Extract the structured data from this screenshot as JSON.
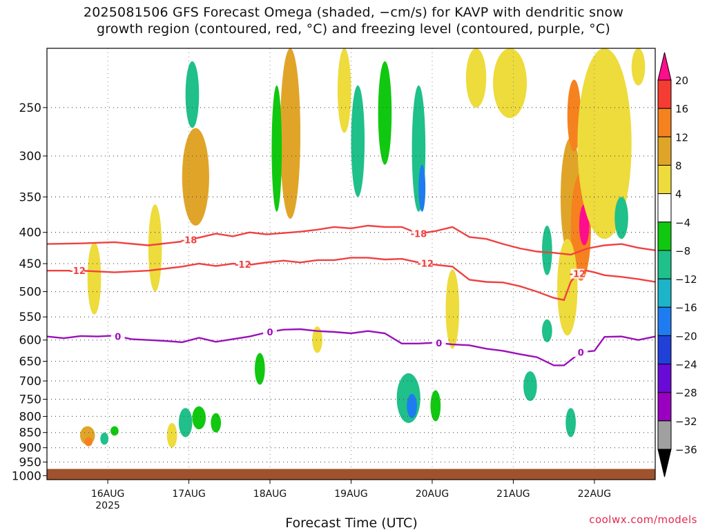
{
  "title": {
    "line1": "2025081506 GFS Forecast Omega (shaded, −cm/s) for KAVP with dendritic snow",
    "line2": "growth region (contoured, red, °C) and freezing level (contoured, purple, °C)"
  },
  "credit": "coolwx.com/models",
  "chart_data": {
    "type": "heatmap",
    "xlabel": "Forecast Time (UTC)",
    "ylabel": "",
    "x_ticks": [
      {
        "label": "16AUG",
        "sublabel": "2025",
        "hour": 18
      },
      {
        "label": "17AUG",
        "sublabel": "",
        "hour": 42
      },
      {
        "label": "18AUG",
        "sublabel": "",
        "hour": 66
      },
      {
        "label": "19AUG",
        "sublabel": "",
        "hour": 90
      },
      {
        "label": "20AUG",
        "sublabel": "",
        "hour": 114
      },
      {
        "label": "21AUG",
        "sublabel": "",
        "hour": 138
      },
      {
        "label": "22AUG",
        "sublabel": "",
        "hour": 162
      }
    ],
    "xlim_hours": [
      0,
      180
    ],
    "y_ticks": [
      250,
      300,
      350,
      400,
      450,
      500,
      550,
      600,
      650,
      700,
      750,
      800,
      850,
      900,
      950,
      1000
    ],
    "ylim_hpa": [
      200,
      1015
    ],
    "y_scale": "log-pressure",
    "ground_hpa": 975,
    "colorbar": {
      "labels": [
        "20",
        "16",
        "12",
        "8",
        "4",
        "−4",
        "−8",
        "−12",
        "−16",
        "−20",
        "−24",
        "−28",
        "−32",
        "−36"
      ],
      "colors": [
        "#ff0d8c",
        "#f53c32",
        "#f5821e",
        "#e0a528",
        "#eedb3c",
        "#ffffff",
        "#10c810",
        "#1fc08a",
        "#1bb4c8",
        "#1e7cf0",
        "#2040d8",
        "#6a0ad6",
        "#9a00c0",
        "#a0a0a0",
        "#000000"
      ]
    },
    "contours": [
      {
        "label": "-18",
        "color": "#f04040",
        "points": [
          [
            0,
            418
          ],
          [
            10,
            417
          ],
          [
            20,
            415
          ],
          [
            30,
            420
          ],
          [
            40,
            414
          ],
          [
            45,
            408
          ],
          [
            50,
            402
          ],
          [
            55,
            406
          ],
          [
            60,
            400
          ],
          [
            65,
            403
          ],
          [
            70,
            401
          ],
          [
            75,
            399
          ],
          [
            80,
            396
          ],
          [
            85,
            392
          ],
          [
            90,
            394
          ],
          [
            95,
            390
          ],
          [
            100,
            392
          ],
          [
            105,
            392
          ],
          [
            110,
            402
          ],
          [
            115,
            398
          ],
          [
            120,
            392
          ],
          [
            125,
            407
          ],
          [
            130,
            410
          ],
          [
            135,
            418
          ],
          [
            140,
            425
          ],
          [
            145,
            430
          ],
          [
            150,
            432
          ],
          [
            155,
            435
          ],
          [
            160,
            425
          ],
          [
            165,
            420
          ],
          [
            170,
            418
          ],
          [
            175,
            424
          ],
          [
            180,
            428
          ]
        ],
        "label_hours": [
          42,
          110
        ]
      },
      {
        "label": "-12",
        "color": "#f04040",
        "points": [
          [
            0,
            462
          ],
          [
            10,
            462
          ],
          [
            20,
            465
          ],
          [
            30,
            462
          ],
          [
            40,
            455
          ],
          [
            45,
            450
          ],
          [
            50,
            454
          ],
          [
            55,
            450
          ],
          [
            60,
            452
          ],
          [
            65,
            448
          ],
          [
            70,
            445
          ],
          [
            75,
            448
          ],
          [
            80,
            444
          ],
          [
            85,
            444
          ],
          [
            90,
            440
          ],
          [
            95,
            440
          ],
          [
            100,
            443
          ],
          [
            105,
            442
          ],
          [
            110,
            448
          ],
          [
            115,
            452
          ],
          [
            120,
            455
          ],
          [
            125,
            478
          ],
          [
            130,
            482
          ],
          [
            135,
            483
          ],
          [
            140,
            490
          ],
          [
            145,
            500
          ],
          [
            150,
            512
          ],
          [
            153,
            516
          ],
          [
            155,
            482
          ],
          [
            158,
            460
          ],
          [
            162,
            465
          ],
          [
            165,
            470
          ],
          [
            170,
            473
          ],
          [
            175,
            477
          ],
          [
            180,
            482
          ]
        ],
        "label_hours": [
          9,
          58,
          112,
          157
        ]
      },
      {
        "label": "0",
        "color": "#9a10b8",
        "points": [
          [
            0,
            592
          ],
          [
            5,
            596
          ],
          [
            10,
            591
          ],
          [
            15,
            592
          ],
          [
            20,
            590
          ],
          [
            25,
            598
          ],
          [
            30,
            600
          ],
          [
            35,
            602
          ],
          [
            40,
            605
          ],
          [
            45,
            595
          ],
          [
            50,
            604
          ],
          [
            55,
            598
          ],
          [
            60,
            592
          ],
          [
            65,
            583
          ],
          [
            70,
            577
          ],
          [
            75,
            576
          ],
          [
            80,
            580
          ],
          [
            85,
            582
          ],
          [
            90,
            585
          ],
          [
            95,
            580
          ],
          [
            100,
            585
          ],
          [
            105,
            608
          ],
          [
            110,
            608
          ],
          [
            115,
            606
          ],
          [
            120,
            610
          ],
          [
            125,
            612
          ],
          [
            130,
            620
          ],
          [
            135,
            625
          ],
          [
            140,
            633
          ],
          [
            145,
            640
          ],
          [
            150,
            660
          ],
          [
            153,
            660
          ],
          [
            158,
            628
          ],
          [
            162,
            625
          ],
          [
            165,
            593
          ],
          [
            170,
            592
          ],
          [
            175,
            600
          ],
          [
            180,
            592
          ]
        ],
        "label_hours": [
          21,
          66,
          116,
          158
        ]
      }
    ],
    "omega_blobs": [
      {
        "t": 12,
        "p": 860,
        "w": 2.2,
        "h": 60,
        "v": 10
      },
      {
        "t": 12.3,
        "p": 880,
        "w": 1.2,
        "h": 30,
        "v": 15
      },
      {
        "t": 20,
        "p": 845,
        "w": 1.2,
        "h": 30,
        "v": -7
      },
      {
        "t": 17,
        "p": 870,
        "w": 1.2,
        "h": 40,
        "v": -10
      },
      {
        "t": 41,
        "p": 820,
        "w": 2,
        "h": 90,
        "v": -8
      },
      {
        "t": 45,
        "p": 805,
        "w": 2,
        "h": 70,
        "v": -7
      },
      {
        "t": 50,
        "p": 820,
        "w": 1.5,
        "h": 60,
        "v": -6
      },
      {
        "t": 37,
        "p": 860,
        "w": 1.5,
        "h": 80,
        "v": 6
      },
      {
        "t": 44,
        "p": 330,
        "w": 4,
        "h": 120,
        "v": 8
      },
      {
        "t": 43,
        "p": 240,
        "w": 2,
        "h": 60,
        "v": -10
      },
      {
        "t": 32,
        "p": 430,
        "w": 2,
        "h": 140,
        "v": 5
      },
      {
        "t": 72,
        "p": 280,
        "w": 3,
        "h": 200,
        "v": 9
      },
      {
        "t": 68,
        "p": 300,
        "w": 1.5,
        "h": 140,
        "v": -7
      },
      {
        "t": 92,
        "p": 290,
        "w": 2,
        "h": 120,
        "v": -8
      },
      {
        "t": 100,
        "p": 260,
        "w": 2,
        "h": 100,
        "v": -6
      },
      {
        "t": 110,
        "p": 300,
        "w": 2,
        "h": 140,
        "v": -9
      },
      {
        "t": 111,
        "p": 340,
        "w": 1,
        "h": 60,
        "v": -16
      },
      {
        "t": 107,
        "p": 750,
        "w": 3.5,
        "h": 140,
        "v": -10
      },
      {
        "t": 108,
        "p": 770,
        "w": 1.5,
        "h": 70,
        "v": -16
      },
      {
        "t": 115,
        "p": 770,
        "w": 1.5,
        "h": 90,
        "v": -7
      },
      {
        "t": 120,
        "p": 540,
        "w": 2,
        "h": 160,
        "v": 6
      },
      {
        "t": 127,
        "p": 200,
        "w": 3,
        "h": 100,
        "v": 6
      },
      {
        "t": 155,
        "p": 360,
        "w": 3,
        "h": 160,
        "v": 10
      },
      {
        "t": 156,
        "p": 260,
        "w": 2,
        "h": 70,
        "v": 14
      },
      {
        "t": 158,
        "p": 400,
        "w": 3,
        "h": 160,
        "v": 14
      },
      {
        "t": 159,
        "p": 390,
        "w": 1.5,
        "h": 60,
        "v": 20
      },
      {
        "t": 163,
        "p": 260,
        "w": 2.5,
        "h": 100,
        "v": 12
      },
      {
        "t": 164,
        "p": 350,
        "w": 1.5,
        "h": 110,
        "v": 16
      },
      {
        "t": 154,
        "p": 500,
        "w": 3,
        "h": 180,
        "v": 5
      },
      {
        "t": 155,
        "p": 820,
        "w": 1.5,
        "h": 90,
        "v": -9
      },
      {
        "t": 165,
        "p": 280,
        "w": 8,
        "h": 260,
        "v": 5
      },
      {
        "t": 170,
        "p": 380,
        "w": 2,
        "h": 60,
        "v": -8
      },
      {
        "t": 148,
        "p": 430,
        "w": 1.5,
        "h": 80,
        "v": -8
      },
      {
        "t": 148,
        "p": 580,
        "w": 1.5,
        "h": 50,
        "v": -10
      },
      {
        "t": 143,
        "p": 715,
        "w": 2,
        "h": 80,
        "v": -8
      },
      {
        "t": 175,
        "p": 180,
        "w": 2,
        "h": 100,
        "v": 6
      },
      {
        "t": 14,
        "p": 480,
        "w": 2,
        "h": 130,
        "v": 5
      },
      {
        "t": 63,
        "p": 670,
        "w": 1.5,
        "h": 80,
        "v": -6
      },
      {
        "t": 80,
        "p": 600,
        "w": 1.5,
        "h": 60,
        "v": 5
      },
      {
        "t": 88,
        "p": 220,
        "w": 2,
        "h": 110,
        "v": 6
      },
      {
        "t": 137,
        "p": 190,
        "w": 5,
        "h": 140,
        "v": 6
      }
    ]
  }
}
